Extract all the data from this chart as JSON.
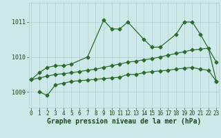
{
  "title": "Graphe pression niveau de la mer (hPa)",
  "hours": [
    0,
    1,
    2,
    3,
    4,
    5,
    6,
    7,
    8,
    9,
    10,
    11,
    12,
    13,
    14,
    15,
    16,
    17,
    18,
    19,
    20,
    21,
    22,
    23
  ],
  "line1_x": [
    0,
    1,
    2,
    3,
    4,
    5,
    7,
    9,
    10,
    11,
    12,
    14,
    15,
    16,
    18,
    19,
    20,
    21,
    23
  ],
  "line1_y": [
    1009.35,
    1009.55,
    1009.7,
    1009.75,
    1009.75,
    1009.8,
    1010.0,
    1011.05,
    1010.8,
    1010.8,
    1011.0,
    1010.5,
    1010.28,
    1010.28,
    1010.65,
    1011.0,
    1011.0,
    1010.65,
    1009.85
  ],
  "line2_x": [
    0,
    1,
    2,
    3,
    4,
    5,
    6,
    7,
    8,
    9,
    10,
    11,
    12,
    13,
    14,
    15,
    16,
    17,
    18,
    19,
    20,
    21,
    22,
    23
  ],
  "line2_y": [
    1009.35,
    1009.4,
    1009.45,
    1009.5,
    1009.52,
    1009.55,
    1009.58,
    1009.62,
    1009.65,
    1009.7,
    1009.75,
    1009.8,
    1009.85,
    1009.88,
    1009.92,
    1009.95,
    1010.0,
    1010.05,
    1010.1,
    1010.15,
    1010.2,
    1010.22,
    1010.25,
    1009.3
  ],
  "line3_x": [
    1,
    2,
    3,
    4,
    5,
    6,
    7,
    8,
    9,
    10,
    11,
    12,
    13,
    14,
    15,
    16,
    17,
    18,
    19,
    20,
    21,
    22,
    23
  ],
  "line3_y": [
    1009.0,
    1008.9,
    1009.2,
    1009.25,
    1009.3,
    1009.32,
    1009.34,
    1009.36,
    1009.38,
    1009.4,
    1009.42,
    1009.5,
    1009.5,
    1009.55,
    1009.58,
    1009.6,
    1009.62,
    1009.65,
    1009.68,
    1009.7,
    1009.65,
    1009.62,
    1009.3
  ],
  "yticks": [
    1009,
    1010,
    1011
  ],
  "ylim": [
    1008.55,
    1011.55
  ],
  "xlim": [
    -0.3,
    23.3
  ],
  "line_color": "#2d6b2d",
  "bg_color": "#cce8e8",
  "grid_color": "#aad0d0",
  "label_color": "#1a4a1a",
  "title_fontsize": 7.0,
  "tick_fontsize": 5.5,
  "marker_size": 2.5,
  "line_width": 0.9
}
